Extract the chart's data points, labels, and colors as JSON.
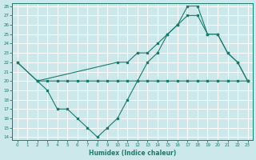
{
  "line1_x": [
    0,
    2,
    3,
    4,
    5,
    6,
    7,
    8,
    9,
    10,
    11,
    12,
    13,
    14,
    15,
    16,
    17,
    18,
    19,
    20,
    21,
    22,
    23
  ],
  "line1_y": [
    22,
    20,
    20,
    20,
    20,
    20,
    20,
    20,
    20,
    20,
    20,
    20,
    20,
    20,
    20,
    20,
    20,
    20,
    20,
    20,
    20,
    20,
    20
  ],
  "line2_x": [
    0,
    2,
    10,
    11,
    12,
    13,
    14,
    15,
    16,
    17,
    18,
    19,
    20,
    21,
    22,
    23
  ],
  "line2_y": [
    22,
    20,
    22,
    22,
    23,
    23,
    24,
    25,
    26,
    27,
    27,
    25,
    25,
    23,
    22,
    20
  ],
  "line3_x": [
    2,
    3,
    4,
    5,
    6,
    7,
    8,
    9,
    10,
    11,
    12,
    13,
    14,
    15,
    16,
    17,
    18,
    19,
    20,
    21,
    22,
    23
  ],
  "line3_y": [
    20,
    19,
    17,
    17,
    16,
    15,
    14,
    15,
    16,
    18,
    20,
    22,
    23,
    25,
    26,
    28,
    28,
    25,
    25,
    23,
    22,
    20
  ],
  "color": "#1a7a6e",
  "bg_color": "#cde8ea",
  "grid_color": "#ffffff",
  "xlabel": "Humidex (Indice chaleur)",
  "ylim": [
    14,
    28
  ],
  "xlim": [
    -0.5,
    23.5
  ],
  "yticks": [
    14,
    15,
    16,
    17,
    18,
    19,
    20,
    21,
    22,
    23,
    24,
    25,
    26,
    27,
    28
  ],
  "xticks": [
    0,
    1,
    2,
    3,
    4,
    5,
    6,
    7,
    8,
    9,
    10,
    11,
    12,
    13,
    14,
    15,
    16,
    17,
    18,
    19,
    20,
    21,
    22,
    23
  ]
}
